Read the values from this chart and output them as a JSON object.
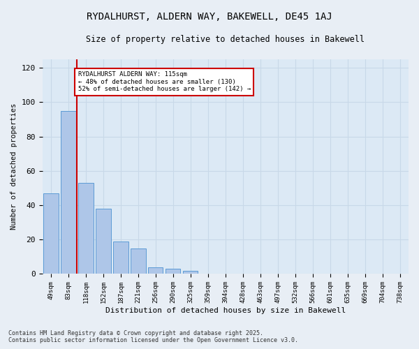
{
  "title": "RYDALHURST, ALDERN WAY, BAKEWELL, DE45 1AJ",
  "subtitle": "Size of property relative to detached houses in Bakewell",
  "xlabel": "Distribution of detached houses by size in Bakewell",
  "ylabel": "Number of detached properties",
  "bar_labels": [
    "49sqm",
    "83sqm",
    "118sqm",
    "152sqm",
    "187sqm",
    "221sqm",
    "256sqm",
    "290sqm",
    "325sqm",
    "359sqm",
    "394sqm",
    "428sqm",
    "463sqm",
    "497sqm",
    "532sqm",
    "566sqm",
    "601sqm",
    "635sqm",
    "669sqm",
    "704sqm",
    "738sqm"
  ],
  "bar_values": [
    47,
    95,
    53,
    38,
    19,
    15,
    4,
    3,
    2,
    0,
    0,
    0,
    0,
    0,
    0,
    0,
    0,
    0,
    0,
    0,
    0
  ],
  "bar_color": "#aec6e8",
  "bar_edgecolor": "#5b9bd5",
  "grid_color": "#c8d8e8",
  "background_color": "#dce9f5",
  "fig_background": "#e8eef5",
  "property_line_x": 1.5,
  "annotation_text": "RYDALHURST ALDERN WAY: 115sqm\n← 48% of detached houses are smaller (130)\n52% of semi-detached houses are larger (142) →",
  "annotation_box_facecolor": "#ffffff",
  "annotation_border_color": "#cc0000",
  "red_line_color": "#cc0000",
  "footer_line1": "Contains HM Land Registry data © Crown copyright and database right 2025.",
  "footer_line2": "Contains public sector information licensed under the Open Government Licence v3.0.",
  "ylim": [
    0,
    125
  ],
  "yticks": [
    0,
    20,
    40,
    60,
    80,
    100,
    120
  ]
}
